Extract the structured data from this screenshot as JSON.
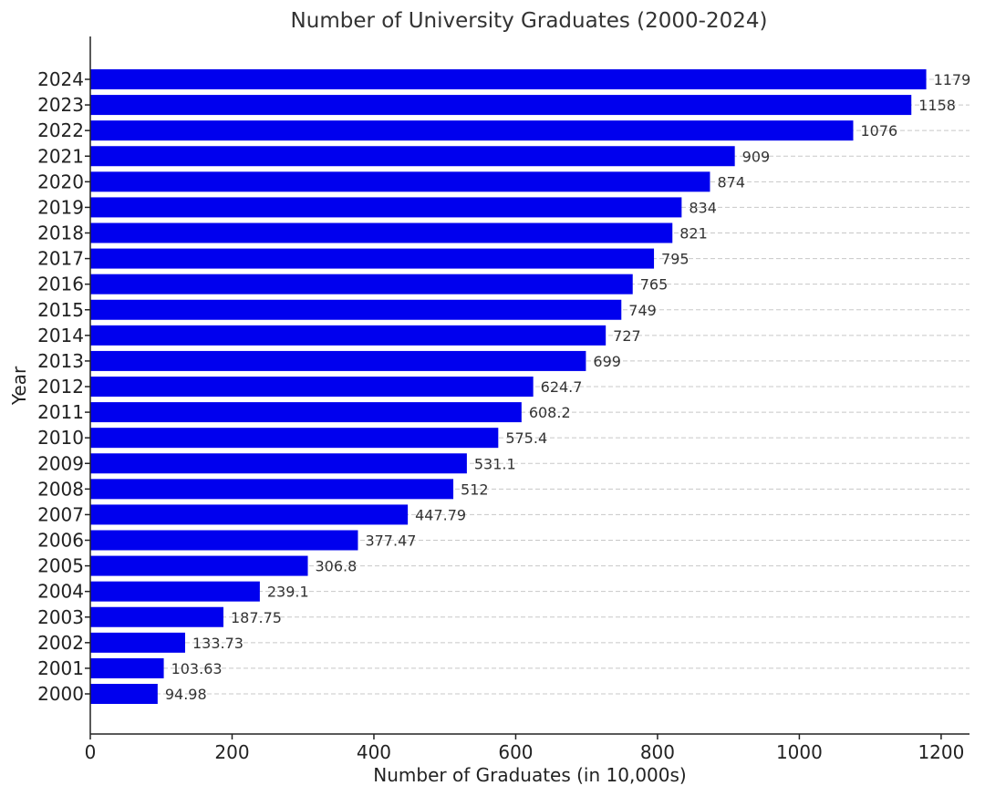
{
  "chart_data": {
    "type": "bar",
    "orientation": "horizontal",
    "title": "Number of University Graduates (2000-2024)",
    "xlabel": "Number of Graduates (in 10,000s)",
    "ylabel": "Year",
    "xlim": [
      0,
      1240
    ],
    "xticks": [
      0,
      200,
      400,
      600,
      800,
      1000,
      1200
    ],
    "grid": "x-dashed",
    "bar_color": "#0000ee",
    "categories": [
      "2000",
      "2001",
      "2002",
      "2003",
      "2004",
      "2005",
      "2006",
      "2007",
      "2008",
      "2009",
      "2010",
      "2011",
      "2012",
      "2013",
      "2014",
      "2015",
      "2016",
      "2017",
      "2018",
      "2019",
      "2020",
      "2021",
      "2022",
      "2023",
      "2024"
    ],
    "values": [
      94.98,
      103.63,
      133.73,
      187.75,
      239.1,
      306.8,
      377.47,
      447.79,
      512,
      531.1,
      575.4,
      608.2,
      624.7,
      699,
      727,
      749,
      765,
      795,
      821,
      834,
      874,
      909,
      1076,
      1158,
      1179
    ]
  }
}
